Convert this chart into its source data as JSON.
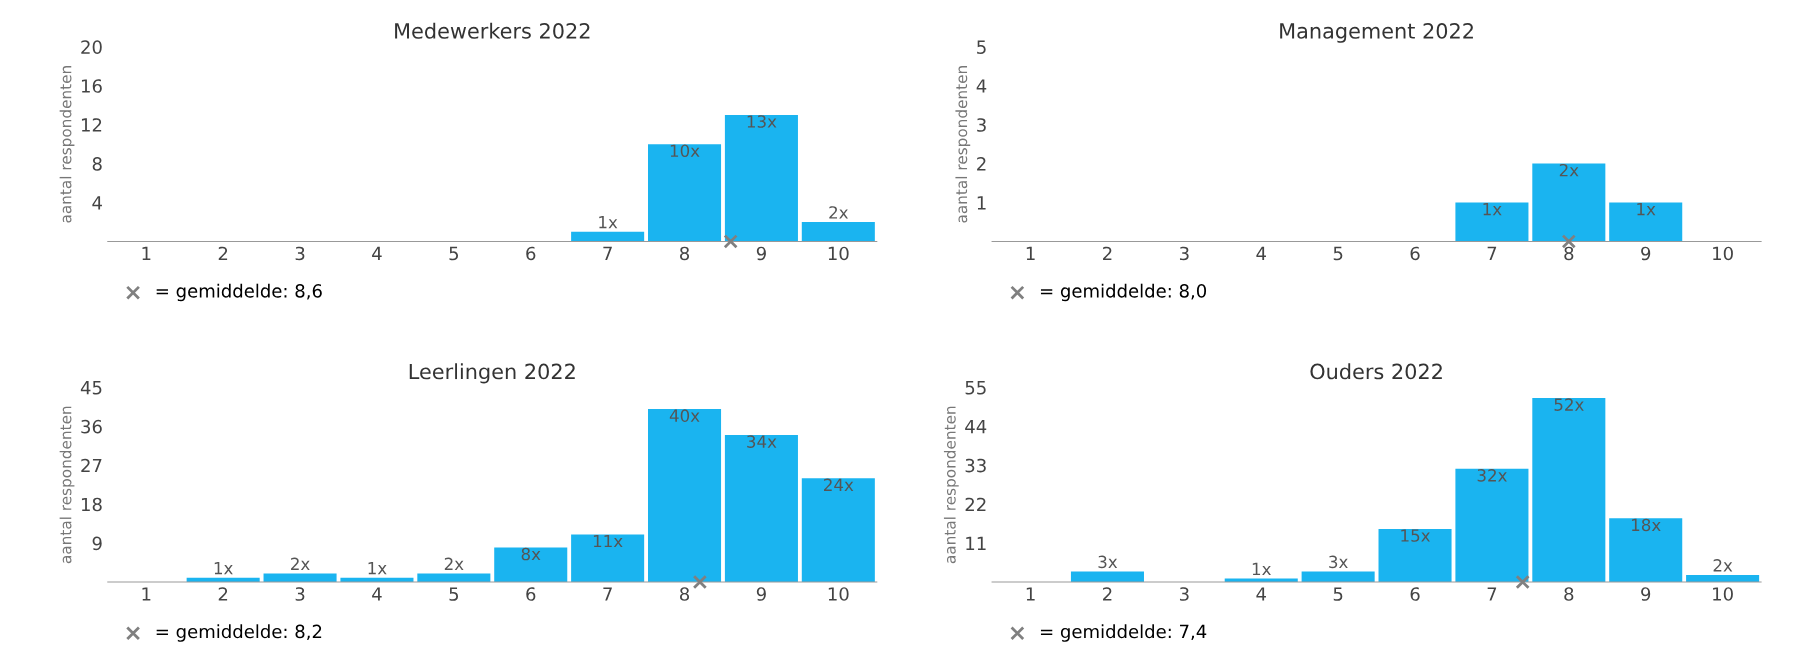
{
  "chart_data": [
    {
      "type": "bar",
      "title": "Medewerkers 2022",
      "ylabel": "aantal respondenten",
      "x": [
        1,
        2,
        3,
        4,
        5,
        6,
        7,
        8,
        9,
        10
      ],
      "xlim": [
        0.5,
        10.5
      ],
      "xticks": [
        1,
        2,
        3,
        4,
        5,
        6,
        7,
        8,
        9,
        10
      ],
      "ylim": [
        0,
        20
      ],
      "yticks": [
        4,
        8,
        12,
        16,
        20
      ],
      "grid": false,
      "legend": "bottom left",
      "series": [
        {
          "color": "#1ab4f0",
          "values": [
            0,
            0,
            0,
            0,
            0,
            0,
            1,
            10,
            13,
            2
          ],
          "value_labels": [
            null,
            null,
            null,
            null,
            null,
            null,
            "1x",
            "10x",
            "13x",
            "2x"
          ]
        },
        {
          "type": "scatter",
          "name": "= gemiddelde: 8,6",
          "color": "#808080",
          "marker": "cross",
          "x": [
            8.6
          ],
          "values": [
            0
          ]
        }
      ]
    },
    {
      "type": "bar",
      "title": "Management 2022",
      "ylabel": "aantal respondenten",
      "x": [
        1,
        2,
        3,
        4,
        5,
        6,
        7,
        8,
        9,
        10
      ],
      "xlim": [
        0.5,
        10.5
      ],
      "xticks": [
        1,
        2,
        3,
        4,
        5,
        6,
        7,
        8,
        9,
        10
      ],
      "ylim": [
        0,
        5
      ],
      "yticks": [
        1,
        2,
        3,
        4,
        5
      ],
      "grid": false,
      "legend": "bottom left",
      "series": [
        {
          "color": "#1ab4f0",
          "values": [
            0,
            0,
            0,
            0,
            0,
            0,
            1,
            2,
            1,
            0
          ],
          "value_labels": [
            null,
            null,
            null,
            null,
            null,
            null,
            "1x",
            "2x",
            "1x",
            null
          ]
        },
        {
          "type": "scatter",
          "name": "= gemiddelde: 8,0",
          "color": "#808080",
          "marker": "cross",
          "x": [
            8.0
          ],
          "values": [
            0
          ]
        }
      ]
    },
    {
      "type": "bar",
      "title": "Leerlingen 2022",
      "ylabel": "aantal respondenten",
      "x": [
        1,
        2,
        3,
        4,
        5,
        6,
        7,
        8,
        9,
        10
      ],
      "xlim": [
        0.5,
        10.5
      ],
      "xticks": [
        1,
        2,
        3,
        4,
        5,
        6,
        7,
        8,
        9,
        10
      ],
      "ylim": [
        0,
        45
      ],
      "yticks": [
        9,
        18,
        27,
        36,
        45
      ],
      "grid": false,
      "legend": "bottom left",
      "series": [
        {
          "color": "#1ab4f0",
          "values": [
            0,
            1,
            2,
            1,
            2,
            8,
            11,
            40,
            34,
            24
          ],
          "value_labels": [
            null,
            "1x",
            "2x",
            "1x",
            "2x",
            "8x",
            "11x",
            "40x",
            "34x",
            "24x"
          ]
        },
        {
          "type": "scatter",
          "name": "= gemiddelde: 8,2",
          "color": "#808080",
          "marker": "cross",
          "x": [
            8.2
          ],
          "values": [
            0
          ]
        }
      ]
    },
    {
      "type": "bar",
      "title": "Ouders 2022",
      "ylabel": "aantal respondenten",
      "x": [
        1,
        2,
        3,
        4,
        5,
        6,
        7,
        8,
        9,
        10
      ],
      "xlim": [
        0.5,
        10.5
      ],
      "xticks": [
        1,
        2,
        3,
        4,
        5,
        6,
        7,
        8,
        9,
        10
      ],
      "ylim": [
        0,
        55
      ],
      "yticks": [
        11,
        22,
        33,
        44,
        55
      ],
      "grid": false,
      "legend": "bottom left",
      "series": [
        {
          "color": "#1ab4f0",
          "values": [
            0,
            3,
            0,
            1,
            3,
            15,
            32,
            52,
            18,
            2
          ],
          "value_labels": [
            null,
            "3x",
            null,
            "1x",
            "3x",
            "15x",
            "32x",
            "52x",
            "18x",
            "2x"
          ]
        },
        {
          "type": "scatter",
          "name": "= gemiddelde: 7,4",
          "color": "#808080",
          "marker": "cross",
          "x": [
            7.4
          ],
          "values": [
            0
          ]
        }
      ]
    }
  ]
}
